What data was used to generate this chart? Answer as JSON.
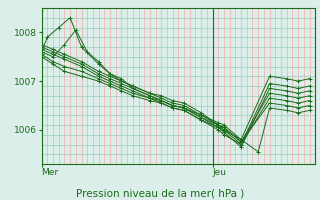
{
  "bg_color": "#dceee9",
  "plot_bg_color": "#dceee9",
  "grid_color_v": "#f0aaaa",
  "grid_color_h": "#99ccbb",
  "line_color": "#1a6b1a",
  "xlabel": "Pression niveau de la mer( hPa )",
  "day_labels": [
    "Mer",
    "Jeu"
  ],
  "ylim": [
    1005.3,
    1008.5
  ],
  "yticks": [
    1006,
    1007,
    1008
  ],
  "xlim": [
    0,
    48
  ],
  "jeu_x": 30,
  "n_vticks": 48,
  "n_hticks": 16,
  "series": [
    [
      0,
      1007.6,
      1,
      1007.9,
      3,
      1008.1,
      5,
      1008.3,
      7,
      1007.7,
      10,
      1007.35,
      12,
      1007.15,
      14,
      1007.0,
      16,
      1006.9,
      19,
      1006.75,
      21,
      1006.7,
      23,
      1006.6,
      25,
      1006.55,
      28,
      1006.35,
      31,
      1006.1,
      32,
      1006.0,
      35,
      1005.8,
      40,
      1007.1,
      43,
      1007.05,
      45,
      1007.0,
      47,
      1007.05
    ],
    [
      0,
      1007.5,
      2,
      1007.35,
      4,
      1007.2,
      7,
      1007.1,
      10,
      1007.0,
      12,
      1006.9,
      14,
      1006.8,
      16,
      1006.7,
      19,
      1006.6,
      21,
      1006.55,
      23,
      1006.45,
      25,
      1006.4,
      28,
      1006.2,
      31,
      1006.0,
      32,
      1005.9,
      35,
      1005.7,
      40,
      1006.95,
      43,
      1006.9,
      45,
      1006.85,
      47,
      1006.9
    ],
    [
      0,
      1007.55,
      2,
      1007.4,
      4,
      1007.3,
      7,
      1007.2,
      10,
      1007.05,
      12,
      1006.95,
      14,
      1006.85,
      16,
      1006.75,
      19,
      1006.65,
      21,
      1006.6,
      23,
      1006.5,
      25,
      1006.45,
      28,
      1006.25,
      31,
      1006.05,
      32,
      1005.95,
      35,
      1005.65,
      40,
      1006.85,
      43,
      1006.8,
      45,
      1006.75,
      47,
      1006.8
    ],
    [
      0,
      1007.6,
      2,
      1007.5,
      4,
      1007.75,
      6,
      1008.05,
      8,
      1007.6,
      10,
      1007.4,
      12,
      1007.15,
      14,
      1007.05,
      16,
      1006.85,
      19,
      1006.7,
      21,
      1006.6,
      23,
      1006.5,
      25,
      1006.45,
      28,
      1006.3,
      31,
      1006.1,
      32,
      1006.05,
      35,
      1005.75,
      40,
      1006.75,
      43,
      1006.7,
      45,
      1006.65,
      47,
      1006.7
    ],
    [
      0,
      1007.65,
      2,
      1007.55,
      4,
      1007.45,
      7,
      1007.3,
      10,
      1007.1,
      12,
      1007.0,
      14,
      1006.9,
      16,
      1006.8,
      19,
      1006.65,
      21,
      1006.55,
      23,
      1006.45,
      25,
      1006.4,
      28,
      1006.2,
      31,
      1006.05,
      32,
      1006.0,
      35,
      1005.7,
      40,
      1006.65,
      43,
      1006.6,
      45,
      1006.55,
      47,
      1006.6
    ],
    [
      0,
      1007.7,
      2,
      1007.6,
      4,
      1007.5,
      7,
      1007.35,
      10,
      1007.15,
      12,
      1007.05,
      14,
      1006.95,
      16,
      1006.85,
      19,
      1006.7,
      21,
      1006.6,
      23,
      1006.5,
      25,
      1006.45,
      28,
      1006.25,
      31,
      1006.1,
      32,
      1006.05,
      35,
      1005.75,
      40,
      1006.55,
      43,
      1006.5,
      45,
      1006.45,
      47,
      1006.5
    ],
    [
      0,
      1007.75,
      2,
      1007.65,
      4,
      1007.55,
      7,
      1007.4,
      10,
      1007.2,
      12,
      1007.1,
      14,
      1007.0,
      16,
      1006.9,
      19,
      1006.75,
      21,
      1006.65,
      23,
      1006.55,
      25,
      1006.5,
      28,
      1006.3,
      31,
      1006.15,
      32,
      1006.1,
      35,
      1005.8,
      38,
      1005.55,
      40,
      1006.45,
      43,
      1006.4,
      45,
      1006.35,
      47,
      1006.4
    ]
  ]
}
